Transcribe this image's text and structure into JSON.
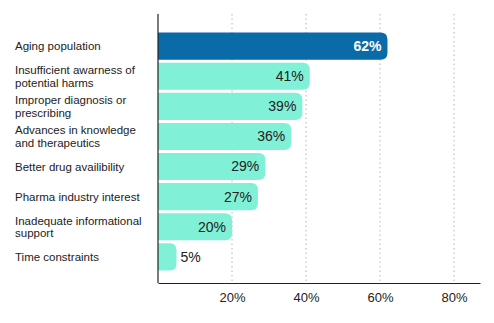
{
  "chart_data": {
    "type": "bar",
    "orientation": "horizontal",
    "categories": [
      "Aging population",
      "Insufficient awarness of potential harms",
      "Improper diagnosis or prescribing",
      "Advances in knowledge and therapeutics",
      "Better drug availibility",
      "Pharma industry interest",
      "Inadequate informational support",
      "Time constraints"
    ],
    "values": [
      62,
      41,
      39,
      36,
      29,
      27,
      20,
      5
    ],
    "value_labels": [
      "62%",
      "41%",
      "39%",
      "36%",
      "29%",
      "27%",
      "20%",
      "5%"
    ],
    "colors": [
      "#0b6aa8",
      "#80f0d6",
      "#80f0d6",
      "#80f0d6",
      "#80f0d6",
      "#80f0d6",
      "#80f0d6",
      "#80f0d6"
    ],
    "xlim": [
      0,
      87
    ],
    "xticks": [
      {
        "value": 20,
        "label": "20%"
      },
      {
        "value": 40,
        "label": "40%"
      },
      {
        "value": 60,
        "label": "60%"
      },
      {
        "value": 80,
        "label": "80%"
      }
    ],
    "grid": true,
    "data_labels": true
  }
}
